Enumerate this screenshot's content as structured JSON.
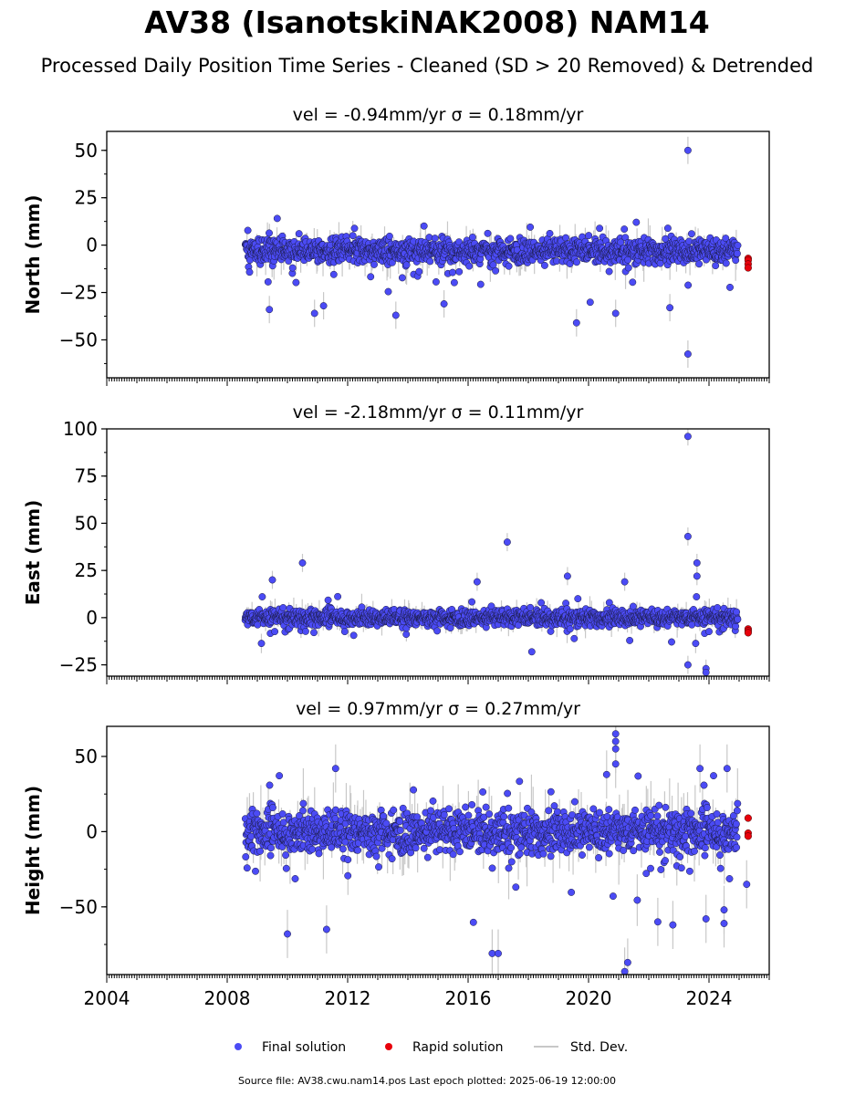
{
  "title": "AV38 (IsanotskiNAK2008) NAM14",
  "subtitle": "Processed Daily Position Time Series - Cleaned (SD > 20 Removed) & Detrended",
  "legend": {
    "final_label": "Final solution",
    "rapid_label": "Rapid solution",
    "std_label": "Std. Dev."
  },
  "footer": "Source file: AV38.cwu.nam14.pos  Last epoch plotted: 2025-06-19 12:00:00",
  "colors": {
    "final": "#4b4bf5",
    "rapid": "#e8000b",
    "std": "#c8c8c8"
  },
  "chart_data": [
    {
      "type": "scatter",
      "title": "vel = -0.94mm/yr   σ = 0.18mm/yr",
      "ylabel": "North (mm)",
      "xlim": [
        2004.0,
        2026.0
      ],
      "ylim": [
        -70,
        60
      ],
      "yticks": [
        50,
        25,
        0,
        -25,
        -50
      ],
      "xticks": [
        2004,
        2008,
        2012,
        2016,
        2020,
        2024
      ],
      "final": {
        "start": 2008.6,
        "end": 2024.95,
        "center": -3,
        "spread": 4.5,
        "outliers": [
          [
            2023.3,
            50
          ],
          [
            2023.3,
            -57.5
          ],
          [
            2009.4,
            -34
          ],
          [
            2010.9,
            -36
          ],
          [
            2019.6,
            -41
          ],
          [
            2013.6,
            -37
          ],
          [
            2020.9,
            -36
          ],
          [
            2022.7,
            -33
          ],
          [
            2011.2,
            -32
          ],
          [
            2015.2,
            -31
          ]
        ]
      },
      "rapid": {
        "x": 2025.3,
        "values": [
          -7,
          -8,
          -10,
          -12
        ]
      }
    },
    {
      "type": "scatter",
      "title": "vel = -2.18mm/yr   σ = 0.11mm/yr",
      "ylabel": "East (mm)",
      "xlim": [
        2004.0,
        2026.0
      ],
      "ylim": [
        -31,
        100
      ],
      "yticks": [
        100,
        75,
        50,
        25,
        0,
        -25
      ],
      "xticks": [
        2004,
        2008,
        2012,
        2016,
        2020,
        2024
      ],
      "final": {
        "start": 2008.6,
        "end": 2024.95,
        "center": 0,
        "spread": 3.0,
        "outliers": [
          [
            2023.3,
            96
          ],
          [
            2023.3,
            43
          ],
          [
            2017.3,
            40
          ],
          [
            2010.5,
            29
          ],
          [
            2023.6,
            29
          ],
          [
            2023.6,
            22
          ],
          [
            2016.3,
            19
          ],
          [
            2021.2,
            19
          ],
          [
            2019.3,
            22
          ],
          [
            2009.5,
            20
          ],
          [
            2023.3,
            -25
          ],
          [
            2023.9,
            -27
          ],
          [
            2023.9,
            -29
          ]
        ]
      },
      "rapid": {
        "x": 2025.3,
        "values": [
          -6,
          -7,
          -8
        ]
      }
    },
    {
      "type": "scatter",
      "title": "vel = 0.97mm/yr   σ = 0.27mm/yr",
      "ylabel": "Height (mm)",
      "xlim": [
        2004.0,
        2026.0
      ],
      "ylim": [
        -95,
        70
      ],
      "yticks": [
        50,
        0,
        -50
      ],
      "xticks": [
        2004,
        2008,
        2012,
        2016,
        2020,
        2024
      ],
      "final": {
        "start": 2008.6,
        "end": 2024.95,
        "center": 0,
        "spread": 10.0,
        "outliers": [
          [
            2020.9,
            65
          ],
          [
            2020.9,
            60
          ],
          [
            2020.9,
            55
          ],
          [
            2020.9,
            45
          ],
          [
            2020.6,
            38
          ],
          [
            2023.7,
            42
          ],
          [
            2024.6,
            42
          ],
          [
            2011.6,
            42
          ],
          [
            2010.0,
            -68
          ],
          [
            2011.3,
            -65
          ],
          [
            2016.8,
            -81
          ],
          [
            2017.0,
            -81
          ],
          [
            2021.3,
            -87
          ],
          [
            2021.2,
            -93
          ],
          [
            2022.3,
            -60
          ],
          [
            2022.8,
            -62
          ],
          [
            2023.9,
            -58
          ],
          [
            2024.5,
            -61
          ],
          [
            2024.5,
            -52
          ],
          [
            2025.25,
            -35
          ]
        ]
      },
      "rapid": {
        "x": 2025.3,
        "values": [
          9,
          -1,
          -3
        ]
      }
    }
  ]
}
